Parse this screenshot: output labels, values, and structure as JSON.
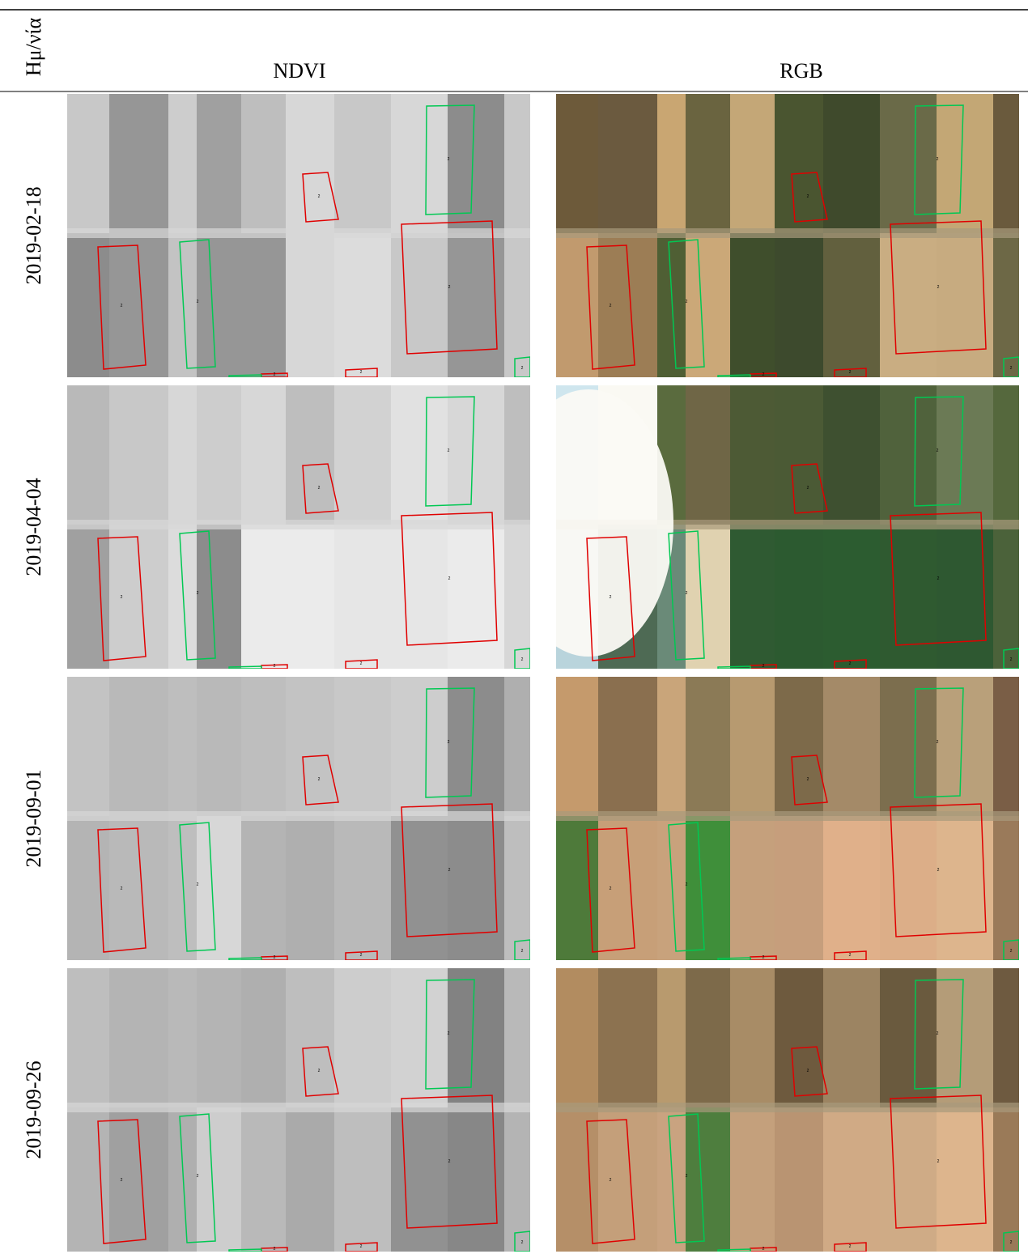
{
  "header": {
    "date_label": "Ημ/νία",
    "columns": [
      "NDVI",
      "RGB"
    ]
  },
  "rows": [
    {
      "date": "2019-02-18"
    },
    {
      "date": "2019-04-04"
    },
    {
      "date": "2019-09-01"
    },
    {
      "date": "2019-09-26"
    }
  ],
  "polygon_label": "2"
}
